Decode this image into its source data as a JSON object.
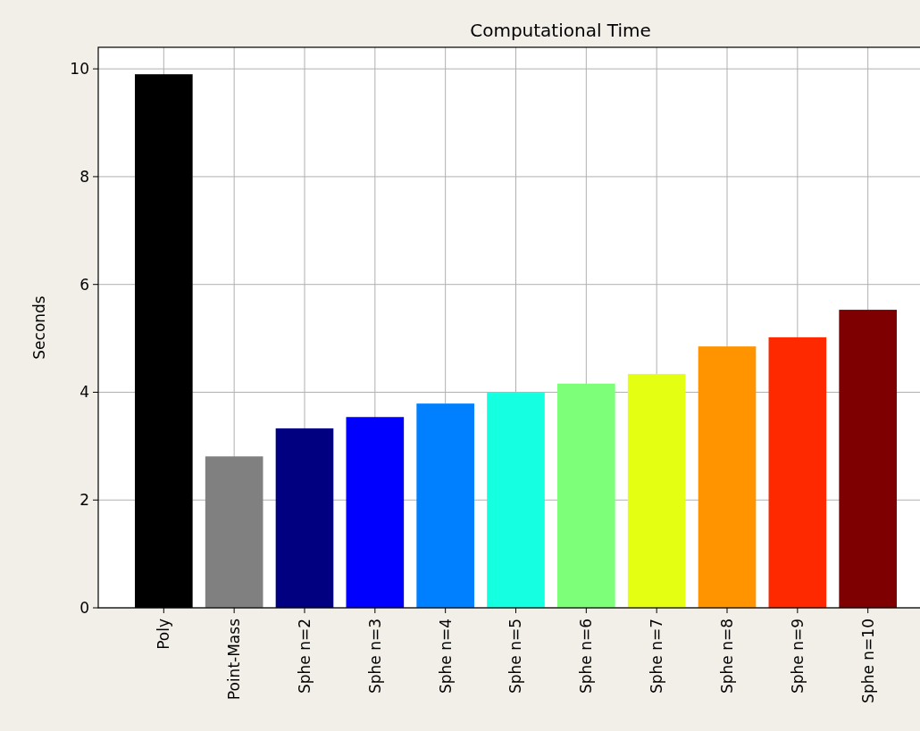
{
  "chart_data": {
    "type": "bar",
    "title": "Computational Time",
    "ylabel": "Seconds",
    "categories": [
      "Poly",
      "Point-Mass",
      "Sphe n=2",
      "Sphe n=3",
      "Sphe n=4",
      "Sphe n=5",
      "Sphe n=6",
      "Sphe n=7",
      "Sphe n=8",
      "Sphe n=9",
      "Sphe n=10"
    ],
    "values": [
      9.9,
      2.81,
      3.33,
      3.54,
      3.79,
      3.99,
      4.16,
      4.34,
      4.85,
      5.02,
      5.53
    ],
    "colors": [
      "#000000",
      "#808080",
      "#000080",
      "#0000ff",
      "#0080ff",
      "#15ffe1",
      "#7dff7a",
      "#e4ff12",
      "#ff9400",
      "#ff2900",
      "#7f0000"
    ],
    "ylim": [
      0,
      10.4
    ],
    "yticks": [
      0,
      2,
      4,
      6,
      8,
      10
    ],
    "grid": true
  }
}
